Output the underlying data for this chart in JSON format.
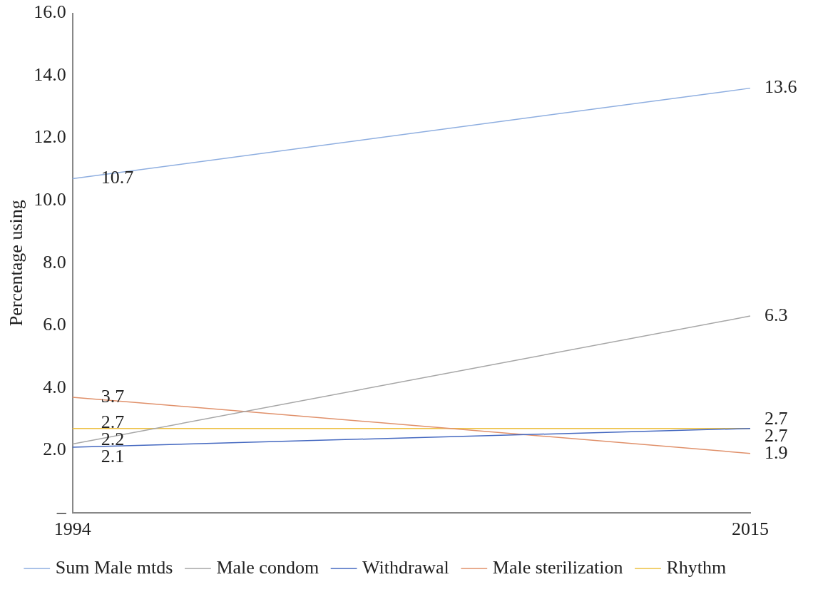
{
  "chart_data": {
    "type": "line",
    "ylabel": "Percentage using",
    "categories": [
      "1994",
      "2015"
    ],
    "series": [
      {
        "name": "Sum Male mtds",
        "color": "#8eaee0",
        "values": [
          10.7,
          13.6
        ]
      },
      {
        "name": "Male condom",
        "color": "#a6a6a6",
        "values": [
          2.2,
          6.3
        ]
      },
      {
        "name": "Withdrawal",
        "color": "#4468c0",
        "values": [
          2.1,
          2.7
        ]
      },
      {
        "name": "Male sterilization",
        "color": "#e0906a",
        "values": [
          3.7,
          1.9
        ]
      },
      {
        "name": "Rhythm",
        "color": "#edc040",
        "values": [
          2.7,
          2.7
        ]
      }
    ],
    "ylim": [
      0,
      16
    ],
    "yticks": [
      {
        "value": 0,
        "label": "–"
      },
      {
        "value": 2,
        "label": "2.0"
      },
      {
        "value": 4,
        "label": "4.0"
      },
      {
        "value": 6,
        "label": "6.0"
      },
      {
        "value": 8,
        "label": "8.0"
      },
      {
        "value": 10,
        "label": "10.0"
      },
      {
        "value": 12,
        "label": "12.0"
      },
      {
        "value": 14,
        "label": "14.0"
      },
      {
        "value": 16,
        "label": "16.0"
      }
    ],
    "grid": false,
    "legend": "bottom",
    "marker": "none",
    "line_style": "solid",
    "data_labels": true
  }
}
